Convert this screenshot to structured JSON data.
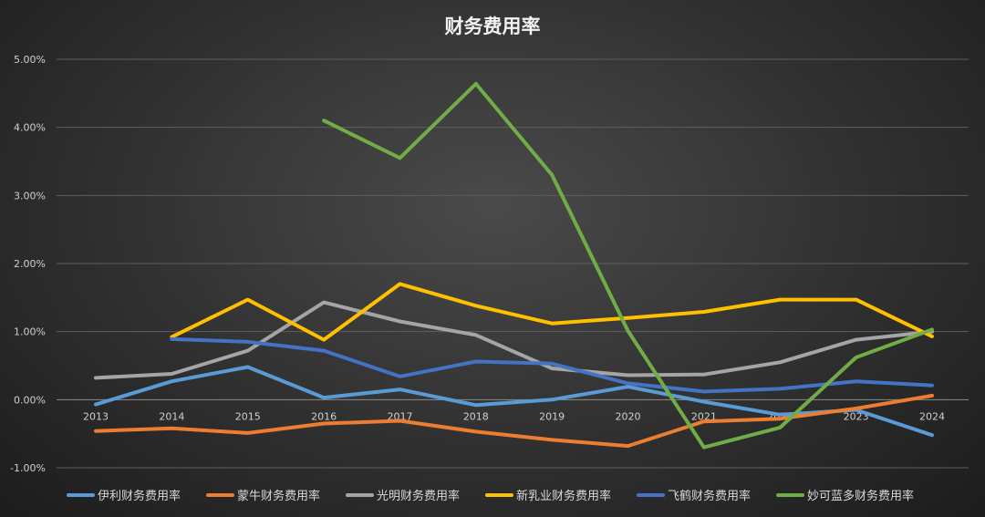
{
  "chart_data": {
    "type": "line",
    "title": "财务费用率",
    "xlabel": "",
    "ylabel": "",
    "categories": [
      "2013",
      "2014",
      "2015",
      "2016",
      "2017",
      "2018",
      "2019",
      "2020",
      "2021",
      "2022",
      "2023",
      "2024"
    ],
    "ylim": [
      -1.0,
      5.0
    ],
    "yticks": [
      "-1.00%",
      "0.00%",
      "1.00%",
      "2.00%",
      "3.00%",
      "4.00%",
      "5.00%"
    ],
    "ytick_values": [
      -1,
      0,
      1,
      2,
      3,
      4,
      5
    ],
    "grid": true,
    "legend_position": "bottom",
    "series": [
      {
        "name": "伊利财务费用率",
        "color": "#5b9bd5",
        "values": [
          -0.07,
          0.27,
          0.48,
          0.03,
          0.15,
          -0.08,
          0.0,
          0.19,
          -0.03,
          -0.22,
          -0.15,
          -0.52
        ]
      },
      {
        "name": "蒙牛财务费用率",
        "color": "#ed7d31",
        "values": [
          -0.46,
          -0.42,
          -0.49,
          -0.35,
          -0.31,
          -0.47,
          -0.59,
          -0.68,
          -0.32,
          -0.28,
          -0.13,
          0.06
        ]
      },
      {
        "name": "光明财务费用率",
        "color": "#a5a5a5",
        "values": [
          0.32,
          0.38,
          0.72,
          1.43,
          1.15,
          0.95,
          0.46,
          0.36,
          0.37,
          0.55,
          0.88,
          1.0
        ]
      },
      {
        "name": "新乳业财务费用率",
        "color": "#ffc000",
        "values": [
          null,
          0.92,
          1.47,
          0.88,
          1.7,
          1.38,
          1.12,
          1.2,
          1.29,
          1.47,
          1.47,
          0.93
        ]
      },
      {
        "name": "飞鹤财务费用率",
        "color": "#4472c4",
        "values": [
          null,
          0.89,
          0.85,
          0.72,
          0.34,
          0.56,
          0.53,
          0.24,
          0.12,
          0.16,
          0.27,
          0.21
        ]
      },
      {
        "name": "妙可蓝多财务费用率",
        "color": "#70ad47",
        "values": [
          null,
          null,
          null,
          4.1,
          3.55,
          4.64,
          3.3,
          1.01,
          -0.7,
          -0.41,
          0.62,
          1.03
        ]
      }
    ]
  }
}
